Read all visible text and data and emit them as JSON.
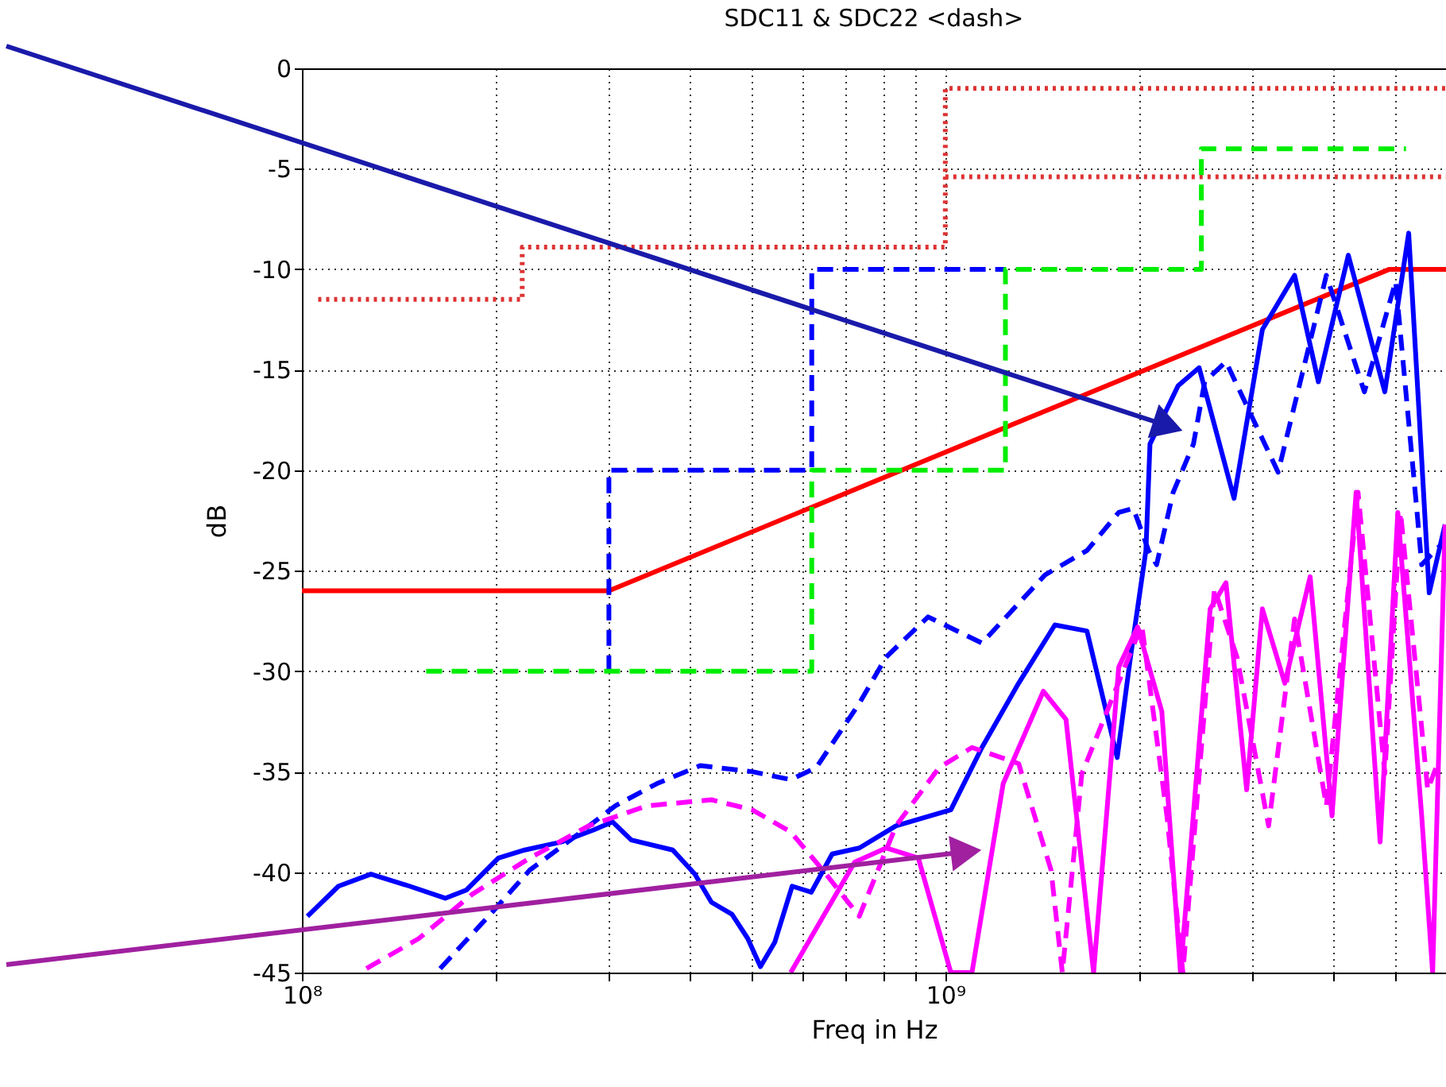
{
  "chart_data": {
    "type": "line",
    "title": "SDC11 & SDC22 <dash>",
    "xlabel": "Freq in Hz",
    "ylabel": "dB",
    "log": "x",
    "xlim": [
      100000000,
      6000000000
    ],
    "ylim": [
      -45,
      0
    ],
    "xticks": [
      {
        "value": 100000000,
        "label": "10⁸"
      },
      {
        "value": 200000000,
        "label": null
      },
      {
        "value": 300000000,
        "label": null
      },
      {
        "value": 400000000,
        "label": null
      },
      {
        "value": 500000000,
        "label": null
      },
      {
        "value": 600000000,
        "label": null
      },
      {
        "value": 700000000,
        "label": null
      },
      {
        "value": 800000000,
        "label": null
      },
      {
        "value": 900000000,
        "label": null
      },
      {
        "value": 1000000000,
        "label": "10⁹"
      },
      {
        "value": 2000000000,
        "label": null
      },
      {
        "value": 3000000000,
        "label": null
      },
      {
        "value": 4000000000,
        "label": null
      },
      {
        "value": 5000000000,
        "label": null
      }
    ],
    "yticks": [
      0,
      -5,
      -10,
      -15,
      -20,
      -25,
      -30,
      -35,
      -40,
      -45
    ],
    "grid": true,
    "series": [
      {
        "color": "#ff0000",
        "line_style": "solid",
        "x": [
          100000000,
          300000000,
          4900000000,
          6000000000
        ],
        "values": [
          -26,
          -26,
          -10,
          -10
        ]
      },
      {
        "color": "#dd3333",
        "line_style": "dotted",
        "x": [
          106000000,
          220000000,
          220000000,
          1000000000,
          1000000000,
          6000000000
        ],
        "values": [
          -11.5,
          -11.5,
          -8.9,
          -8.9,
          -1,
          -1
        ]
      },
      {
        "color": "#dd3333",
        "line_style": "dotted",
        "x": [
          1000000000,
          6000000000
        ],
        "values": [
          -5.4,
          -5.4
        ]
      },
      {
        "color": "#0000ff",
        "line_style": "dashed",
        "x": [
          300000000,
          300000000,
          620000000,
          620000000,
          1240000000
        ],
        "values": [
          -30,
          -20,
          -20,
          -10,
          -10
        ]
      },
      {
        "color": "#00ee00",
        "line_style": "dashed",
        "x": [
          156000000,
          620000000,
          620000000,
          1240000000,
          1240000000,
          2500000000,
          2500000000,
          5200000000
        ],
        "values": [
          -30,
          -30,
          -20,
          -20,
          -10,
          -10,
          -4,
          -4
        ]
      },
      {
        "color": "#0000ff",
        "line_style": "solid",
        "x": [
          102000000,
          114000000,
          128000000,
          147000000,
          167000000,
          180000000,
          202000000,
          222000000,
          253000000,
          284000000,
          304000000,
          325000000,
          377000000,
          408000000,
          433000000,
          466000000,
          493000000,
          516000000,
          543000000,
          578000000,
          619000000,
          667000000,
          735000000,
          838000000,
          1020000000,
          1140000000,
          1300000000,
          1480000000,
          1660000000,
          1760000000,
          1850000000,
          1940000000,
          2050000000,
          2080000000,
          2300000000,
          2480000000,
          2810000000,
          3110000000,
          3490000000,
          3800000000,
          4230000000,
          4820000000,
          5250000000,
          5450000000,
          5650000000,
          5980000000
        ],
        "values": [
          -42.2,
          -40.7,
          -40.1,
          -40.7,
          -41.3,
          -40.9,
          -39.3,
          -38.9,
          -38.5,
          -37.9,
          -37.5,
          -38.4,
          -38.9,
          -40.1,
          -41.5,
          -42.1,
          -43.3,
          -44.7,
          -43.5,
          -40.7,
          -41.0,
          -39.1,
          -38.8,
          -37.7,
          -36.9,
          -33.8,
          -30.6,
          -27.7,
          -28.0,
          -31.4,
          -34.3,
          -29.3,
          -24.0,
          -18.7,
          -15.8,
          -14.9,
          -21.4,
          -13.0,
          -10.3,
          -15.6,
          -9.3,
          -16.1,
          -8.2,
          -17.2,
          -26.1,
          -22.7
        ]
      },
      {
        "color": "#0000ff",
        "line_style": "dashed",
        "x": [
          164000000,
          195000000,
          226000000,
          264000000,
          307000000,
          356000000,
          416000000,
          501000000,
          575000000,
          630000000,
          735000000,
          809000000,
          940000000,
          1140000000,
          1430000000,
          1660000000,
          1860000000,
          1960000000,
          2070000000,
          2130000000,
          2260000000,
          2430000000,
          2530000000,
          2730000000,
          3290000000,
          3910000000,
          4480000000,
          5010000000,
          5410000000,
          5500000000,
          5980000000
        ],
        "values": [
          -44.8,
          -42.2,
          -39.9,
          -38.3,
          -36.7,
          -35.6,
          -34.7,
          -35.0,
          -35.4,
          -34.8,
          -31.6,
          -29.3,
          -27.3,
          -28.6,
          -25.2,
          -24.0,
          -22.1,
          -21.9,
          -24.0,
          -24.7,
          -21.1,
          -18.7,
          -15.6,
          -14.6,
          -20.1,
          -10.3,
          -16.1,
          -10.6,
          -22.1,
          -24.7,
          -23.5
        ]
      },
      {
        "color": "#ff00ff",
        "line_style": "solid",
        "x": [
          575000000,
          723000000,
          809000000,
          908000000,
          1020000000,
          1100000000,
          1230000000,
          1420000000,
          1540000000,
          1700000000,
          1860000000,
          1990000000,
          2170000000,
          2320000000,
          2580000000,
          2730000000,
          2940000000,
          3110000000,
          3370000000,
          3690000000,
          3990000000,
          4350000000,
          4740000000,
          5050000000,
          5500000000,
          5720000000,
          5980000000
        ],
        "values": [
          -45,
          -39.5,
          -38.8,
          -39.3,
          -45,
          -45,
          -35.6,
          -31.0,
          -32.4,
          -45,
          -29.8,
          -27.8,
          -32.0,
          -45,
          -26.9,
          -25.6,
          -35.9,
          -26.9,
          -30.6,
          -25.3,
          -37.2,
          -21.1,
          -38.5,
          -22.1,
          -37.2,
          -45,
          -22.7
        ]
      },
      {
        "color": "#ff00ff",
        "line_style": "dashed",
        "x": [
          126000000,
          152000000,
          184000000,
          226000000,
          279000000,
          344000000,
          433000000,
          501000000,
          575000000,
          645000000,
          735000000,
          838000000,
          978000000,
          1100000000,
          1300000000,
          1460000000,
          1520000000,
          1630000000,
          2020000000,
          2210000000,
          2340000000,
          2620000000,
          2840000000,
          3180000000,
          3490000000,
          3910000000,
          4380000000,
          4820000000,
          5100000000,
          5620000000,
          5820000000
        ],
        "values": [
          -44.8,
          -43.3,
          -41.1,
          -39.3,
          -37.7,
          -36.7,
          -36.4,
          -36.9,
          -38.0,
          -39.9,
          -42.2,
          -37.7,
          -34.8,
          -33.8,
          -34.6,
          -39.9,
          -45,
          -35.1,
          -27.7,
          -37.2,
          -45,
          -25.9,
          -29.3,
          -37.7,
          -27.4,
          -36.7,
          -21.1,
          -35.1,
          -22.1,
          -35.9,
          -34.6
        ]
      }
    ]
  }
}
